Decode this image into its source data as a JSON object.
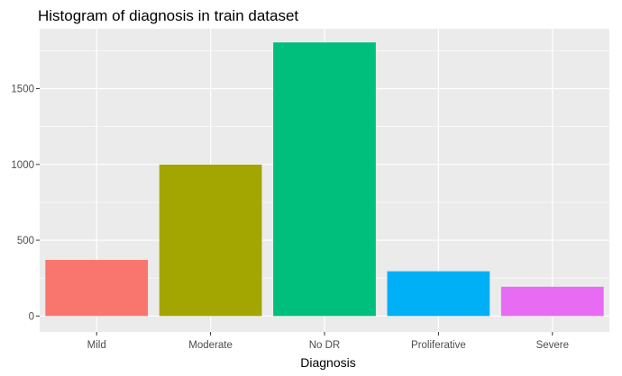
{
  "chart_data": {
    "type": "bar",
    "title": "Histogram of diagnosis in train dataset",
    "xlabel": "Diagnosis",
    "ylabel": "",
    "categories": [
      "Mild",
      "Moderate",
      "No DR",
      "Proliferative",
      "Severe"
    ],
    "values": [
      370,
      999,
      1805,
      295,
      193
    ],
    "colors": [
      "#F8766D",
      "#A3A500",
      "#00BF7D",
      "#00B0F6",
      "#E76BF3"
    ],
    "ylim": [
      -105,
      1895
    ],
    "yticks": [
      0,
      500,
      1000,
      1500
    ],
    "ytick_labels": [
      "0",
      "500",
      "1000",
      "1500"
    ],
    "ygrid_minor": [
      250,
      750,
      1250,
      1750
    ],
    "grid": true,
    "legend": "none",
    "panel_background": "#EBEBEB",
    "grid_color": "#FFFFFF"
  }
}
